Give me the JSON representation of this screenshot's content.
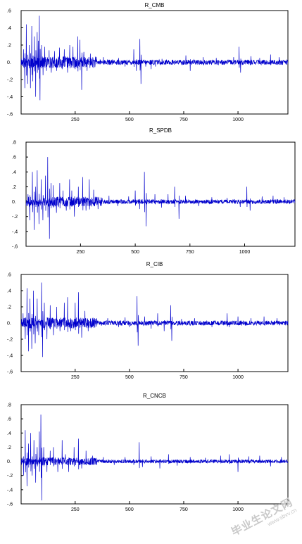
{
  "line_color": "#0000cc",
  "watermark": {
    "main": "毕业生论文网",
    "sub": "www.sbvv.cn"
  },
  "chart_data": [
    {
      "type": "line",
      "title": "R_CMB",
      "x_range": [
        1,
        1230
      ],
      "x_ticks": [
        250,
        500,
        750,
        1000
      ],
      "y_ticks": [
        -0.6,
        -0.4,
        -0.2,
        0.0,
        0.2,
        0.4,
        0.6
      ],
      "y_tick_labels": [
        "-.6",
        "-.4",
        "-.2",
        "0.",
        ".2",
        ".4",
        ".6"
      ],
      "ylim": [
        -0.6,
        0.6
      ],
      "baseline_noise": 0.03,
      "spikes": [
        [
          12,
          0.15
        ],
        [
          18,
          -0.3
        ],
        [
          25,
          0.44
        ],
        [
          31,
          -0.25
        ],
        [
          38,
          0.2
        ],
        [
          44,
          -0.3
        ],
        [
          50,
          0.42
        ],
        [
          55,
          -0.22
        ],
        [
          62,
          0.3
        ],
        [
          68,
          -0.4
        ],
        [
          75,
          0.35
        ],
        [
          80,
          0.25
        ],
        [
          85,
          0.54
        ],
        [
          88,
          -0.44
        ],
        [
          95,
          0.2
        ],
        [
          102,
          -0.15
        ],
        [
          110,
          0.18
        ],
        [
          118,
          -0.1
        ],
        [
          130,
          0.14
        ],
        [
          140,
          -0.12
        ],
        [
          155,
          0.13
        ],
        [
          165,
          -0.1
        ],
        [
          178,
          0.17
        ],
        [
          190,
          -0.08
        ],
        [
          200,
          0.15
        ],
        [
          215,
          -0.12
        ],
        [
          225,
          0.2
        ],
        [
          240,
          0.18
        ],
        [
          250,
          -0.08
        ],
        [
          262,
          0.3
        ],
        [
          272,
          0.26
        ],
        [
          280,
          -0.32
        ],
        [
          290,
          0.12
        ],
        [
          305,
          -0.1
        ],
        [
          320,
          0.1
        ],
        [
          380,
          0.06
        ],
        [
          450,
          0.05
        ],
        [
          480,
          -0.05
        ],
        [
          520,
          0.15
        ],
        [
          532,
          -0.1
        ],
        [
          548,
          0.27
        ],
        [
          553,
          -0.25
        ],
        [
          575,
          -0.05
        ],
        [
          600,
          -0.08
        ],
        [
          620,
          -0.05
        ],
        [
          650,
          0.04
        ],
        [
          700,
          0.03
        ],
        [
          760,
          0.08
        ],
        [
          780,
          -0.1
        ],
        [
          840,
          0.06
        ],
        [
          900,
          0.05
        ],
        [
          980,
          0.06
        ],
        [
          1005,
          0.18
        ],
        [
          1012,
          -0.12
        ],
        [
          1060,
          0.07
        ],
        [
          1100,
          0.05
        ],
        [
          1150,
          0.09
        ],
        [
          1190,
          0.06
        ]
      ]
    },
    {
      "type": "line",
      "title": "R_SPDB",
      "x_range": [
        1,
        1230
      ],
      "x_ticks": [
        250,
        500,
        750,
        1000
      ],
      "y_ticks": [
        -0.6,
        -0.4,
        -0.2,
        0.0,
        0.2,
        0.4,
        0.6,
        0.8
      ],
      "y_tick_labels": [
        "-.6",
        "-.4",
        "-.2",
        "0.",
        ".2",
        ".4",
        ".6",
        ".8"
      ],
      "ylim": [
        -0.6,
        0.8
      ],
      "baseline_noise": 0.03,
      "spikes": [
        [
          10,
          0.1
        ],
        [
          18,
          -0.25
        ],
        [
          30,
          0.4
        ],
        [
          38,
          -0.38
        ],
        [
          45,
          0.2
        ],
        [
          52,
          0.42
        ],
        [
          60,
          -0.3
        ],
        [
          70,
          0.3
        ],
        [
          78,
          -0.25
        ],
        [
          90,
          0.35
        ],
        [
          100,
          0.6
        ],
        [
          108,
          -0.5
        ],
        [
          115,
          0.25
        ],
        [
          125,
          0.22
        ],
        [
          140,
          -0.15
        ],
        [
          155,
          0.25
        ],
        [
          170,
          0.15
        ],
        [
          185,
          -0.12
        ],
        [
          200,
          0.3
        ],
        [
          210,
          0.15
        ],
        [
          222,
          -0.2
        ],
        [
          240,
          0.2
        ],
        [
          260,
          0.33
        ],
        [
          275,
          -0.12
        ],
        [
          290,
          0.3
        ],
        [
          310,
          0.16
        ],
        [
          330,
          -0.1
        ],
        [
          380,
          0.08
        ],
        [
          420,
          -0.06
        ],
        [
          470,
          0.07
        ],
        [
          500,
          0.15
        ],
        [
          520,
          -0.1
        ],
        [
          542,
          0.4
        ],
        [
          550,
          -0.33
        ],
        [
          590,
          0.1
        ],
        [
          620,
          -0.08
        ],
        [
          650,
          0.1
        ],
        [
          680,
          0.2
        ],
        [
          700,
          -0.23
        ],
        [
          730,
          0.08
        ],
        [
          790,
          -0.06
        ],
        [
          850,
          0.06
        ],
        [
          920,
          0.05
        ],
        [
          980,
          -0.07
        ],
        [
          1010,
          0.2
        ],
        [
          1025,
          -0.12
        ],
        [
          1080,
          0.07
        ],
        [
          1130,
          0.08
        ],
        [
          1180,
          0.06
        ]
      ]
    },
    {
      "type": "line",
      "title": "R_CIB",
      "x_range": [
        1,
        1230
      ],
      "x_ticks": [
        250,
        500,
        750,
        1000
      ],
      "y_ticks": [
        -0.6,
        -0.4,
        -0.2,
        0.0,
        0.2,
        0.4,
        0.6
      ],
      "y_tick_labels": [
        "-.6",
        "-.4",
        "-.2",
        "0.",
        ".2",
        ".4",
        ".6"
      ],
      "ylim": [
        -0.6,
        0.6
      ],
      "baseline_noise": 0.03,
      "spikes": [
        [
          10,
          0.12
        ],
        [
          20,
          -0.2
        ],
        [
          28,
          0.43
        ],
        [
          35,
          -0.35
        ],
        [
          42,
          0.3
        ],
        [
          50,
          -0.32
        ],
        [
          58,
          0.4
        ],
        [
          66,
          -0.25
        ],
        [
          75,
          0.3
        ],
        [
          82,
          -0.15
        ],
        [
          95,
          0.5
        ],
        [
          100,
          -0.42
        ],
        [
          108,
          0.25
        ],
        [
          120,
          -0.2
        ],
        [
          135,
          0.22
        ],
        [
          150,
          -0.15
        ],
        [
          165,
          0.2
        ],
        [
          180,
          -0.1
        ],
        [
          200,
          0.25
        ],
        [
          215,
          0.32
        ],
        [
          230,
          -0.1
        ],
        [
          250,
          0.25
        ],
        [
          265,
          0.38
        ],
        [
          280,
          -0.18
        ],
        [
          295,
          0.15
        ],
        [
          310,
          -0.1
        ],
        [
          350,
          0.05
        ],
        [
          400,
          0.06
        ],
        [
          450,
          -0.05
        ],
        [
          480,
          0.07
        ],
        [
          500,
          -0.05
        ],
        [
          535,
          0.33
        ],
        [
          540,
          -0.28
        ],
        [
          570,
          0.08
        ],
        [
          600,
          -0.07
        ],
        [
          630,
          0.12
        ],
        [
          660,
          -0.1
        ],
        [
          690,
          0.22
        ],
        [
          695,
          -0.22
        ],
        [
          740,
          0.05
        ],
        [
          800,
          0.06
        ],
        [
          880,
          -0.05
        ],
        [
          950,
          0.12
        ],
        [
          960,
          -0.05
        ],
        [
          1000,
          0.08
        ],
        [
          1060,
          0.06
        ],
        [
          1120,
          0.08
        ],
        [
          1180,
          0.06
        ]
      ]
    },
    {
      "type": "line",
      "title": "R_CNCB",
      "x_range": [
        1,
        1230
      ],
      "x_ticks": [
        250,
        500,
        750,
        1000
      ],
      "y_ticks": [
        -0.6,
        -0.4,
        -0.2,
        0.0,
        0.2,
        0.4,
        0.6,
        0.8
      ],
      "y_tick_labels": [
        "-.6",
        "-.4",
        "-.2",
        "0.",
        ".2",
        ".4",
        ".6",
        ".8"
      ],
      "ylim": [
        -0.6,
        0.8
      ],
      "baseline_noise": 0.025,
      "spikes": [
        [
          12,
          -0.2
        ],
        [
          20,
          0.44
        ],
        [
          28,
          -0.35
        ],
        [
          35,
          0.25
        ],
        [
          45,
          0.4
        ],
        [
          52,
          -0.2
        ],
        [
          60,
          0.3
        ],
        [
          68,
          -0.3
        ],
        [
          75,
          0.2
        ],
        [
          85,
          0.42
        ],
        [
          92,
          0.66
        ],
        [
          96,
          -0.55
        ],
        [
          105,
          0.2
        ],
        [
          120,
          -0.15
        ],
        [
          135,
          0.15
        ],
        [
          150,
          0.2
        ],
        [
          170,
          -0.15
        ],
        [
          190,
          0.3
        ],
        [
          205,
          0.1
        ],
        [
          220,
          -0.15
        ],
        [
          245,
          0.2
        ],
        [
          265,
          0.32
        ],
        [
          280,
          -0.1
        ],
        [
          300,
          0.15
        ],
        [
          330,
          0.08
        ],
        [
          380,
          0.06
        ],
        [
          430,
          -0.05
        ],
        [
          480,
          0.06
        ],
        [
          520,
          -0.05
        ],
        [
          545,
          0.27
        ],
        [
          560,
          -0.08
        ],
        [
          600,
          0.07
        ],
        [
          640,
          -0.1
        ],
        [
          680,
          0.1
        ],
        [
          720,
          -0.06
        ],
        [
          780,
          0.06
        ],
        [
          850,
          0.05
        ],
        [
          920,
          0.08
        ],
        [
          960,
          0.1
        ],
        [
          1000,
          -0.15
        ],
        [
          1050,
          0.07
        ],
        [
          1100,
          0.08
        ],
        [
          1150,
          -0.07
        ],
        [
          1200,
          0.06
        ]
      ]
    }
  ]
}
